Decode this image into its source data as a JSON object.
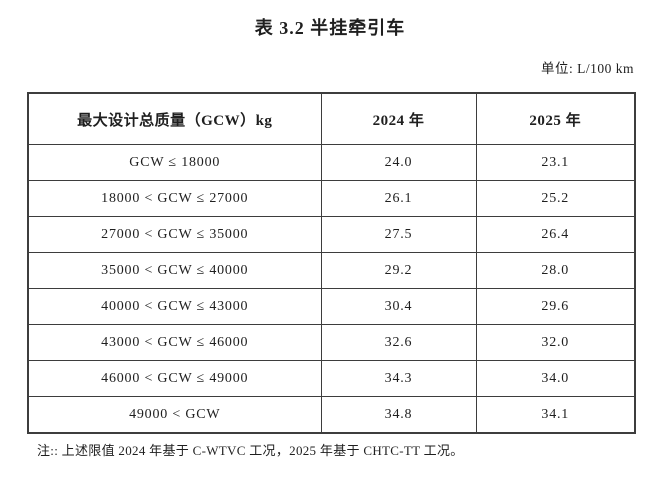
{
  "title": "表 3.2 半挂牵引车",
  "unit_label": "单位: L/100 km",
  "table": {
    "headers": [
      "最大设计总质量（GCW）kg",
      "2024 年",
      "2025 年"
    ],
    "rows": [
      {
        "range": "GCW ≤ 18000",
        "y2024": "24.0",
        "y2025": "23.1"
      },
      {
        "range": "18000 < GCW ≤ 27000",
        "y2024": "26.1",
        "y2025": "25.2"
      },
      {
        "range": "27000 < GCW ≤ 35000",
        "y2024": "27.5",
        "y2025": "26.4"
      },
      {
        "range": "35000 < GCW ≤ 40000",
        "y2024": "29.2",
        "y2025": "28.0"
      },
      {
        "range": "40000 < GCW ≤ 43000",
        "y2024": "30.4",
        "y2025": "29.6"
      },
      {
        "range": "43000 < GCW ≤ 46000",
        "y2024": "32.6",
        "y2025": "32.0"
      },
      {
        "range": "46000 < GCW ≤ 49000",
        "y2024": "34.3",
        "y2025": "34.0"
      },
      {
        "range": "49000 < GCW",
        "y2024": "34.8",
        "y2025": "34.1"
      }
    ]
  },
  "note": "注:: 上述限值 2024 年基于 C-WTVC 工况，2025 年基于 CHTC-TT 工况。",
  "colors": {
    "text": "#1f1f1f",
    "border": "#3d3d3d",
    "background": "#ffffff"
  }
}
